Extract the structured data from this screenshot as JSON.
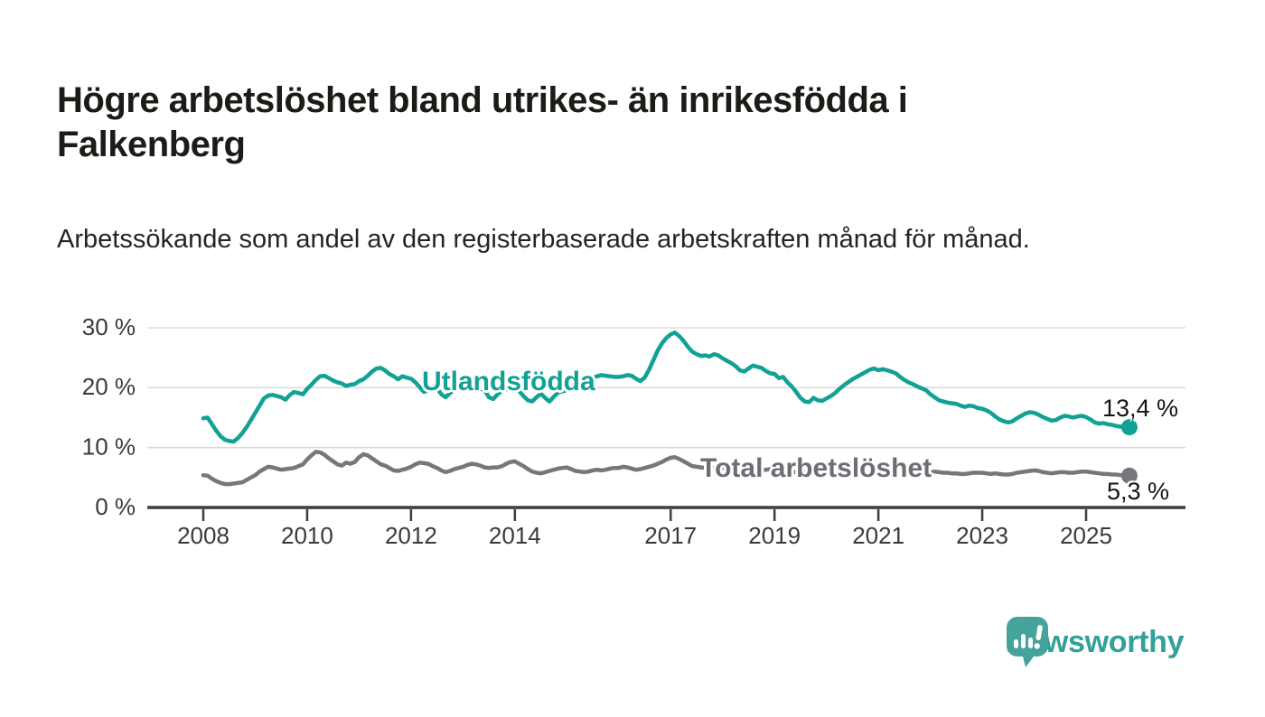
{
  "header": {
    "title": "Högre arbetslöshet bland utrikes- än inrikesfödda i Falkenberg",
    "subtitle": "Arbetssökande som andel av den registerbaserade arbetskraften månad för månad."
  },
  "branding": {
    "logo_text": "Newsworthy",
    "logo_icon": "speech-bubble-bar-chart-icon",
    "icon_color": "#46A39C",
    "text_color": "#33A099"
  },
  "colors": {
    "title": "#1b1b17",
    "axis_text": "#3a3a3a",
    "gridline": "#dbdbdb",
    "axis_line": "#3d3d3d"
  },
  "chart_data": {
    "type": "line",
    "title": "Högre arbetslöshet bland utrikes- än inrikesfödda i Falkenberg",
    "subtitle": "Arbetssökande som andel av den registerbaserade arbetskraften månad för månad.",
    "grid": true,
    "legend_position": "inline-labels",
    "ylim": [
      0,
      30
    ],
    "y_axis": {
      "ticks": [
        0,
        10,
        20,
        30
      ],
      "tick_labels": [
        "0 %",
        "10 %",
        "20 %",
        "30 %"
      ]
    },
    "x_axis": {
      "ticks": [
        2008,
        2010,
        2012,
        2014,
        2017,
        2019,
        2021,
        2023,
        2025
      ],
      "tick_labels": [
        "2008",
        "2010",
        "2012",
        "2014",
        "2017",
        "2019",
        "2021",
        "2023",
        "2025"
      ]
    },
    "series": [
      {
        "name": "Total arbetslöshet",
        "label": "Total arbetslöshet",
        "color": "#77767C",
        "label_color": "#6E6D73",
        "end_label": "5,3 %",
        "end_value": 5.3,
        "start_year": 2008,
        "points_per_year": 12,
        "values": [
          5.4,
          5.3,
          4.8,
          4.4,
          4.1,
          3.9,
          3.9,
          4.0,
          4.1,
          4.2,
          4.6,
          5.0,
          5.4,
          6.0,
          6.4,
          6.8,
          6.7,
          6.5,
          6.3,
          6.4,
          6.5,
          6.6,
          6.9,
          7.2,
          8.0,
          8.7,
          9.3,
          9.2,
          8.8,
          8.2,
          7.7,
          7.2,
          7.0,
          7.5,
          7.3,
          7.6,
          8.4,
          8.9,
          8.7,
          8.2,
          7.7,
          7.2,
          7.0,
          6.6,
          6.2,
          6.1,
          6.3,
          6.5,
          6.8,
          7.2,
          7.5,
          7.4,
          7.3,
          6.9,
          6.6,
          6.2,
          5.9,
          6.1,
          6.4,
          6.6,
          6.8,
          7.1,
          7.3,
          7.2,
          7.0,
          6.7,
          6.6,
          6.7,
          6.7,
          6.9,
          7.3,
          7.6,
          7.7,
          7.3,
          6.9,
          6.4,
          6.0,
          5.8,
          5.7,
          5.9,
          6.1,
          6.3,
          6.5,
          6.6,
          6.7,
          6.4,
          6.1,
          6.0,
          5.9,
          6.0,
          6.2,
          6.3,
          6.2,
          6.3,
          6.5,
          6.6,
          6.6,
          6.8,
          6.7,
          6.5,
          6.3,
          6.4,
          6.6,
          6.8,
          7.0,
          7.3,
          7.6,
          8.0,
          8.3,
          8.4,
          8.1,
          7.7,
          7.3,
          6.9,
          6.8,
          6.7,
          6.6,
          6.5,
          6.6,
          6.6,
          6.6,
          6.5,
          6.4,
          6.3,
          6.2,
          6.1,
          6.1,
          6.2,
          6.2,
          6.3,
          6.3,
          6.4,
          6.4,
          6.3,
          6.2,
          6.1,
          6.0,
          5.9,
          5.9,
          6.0,
          6.1,
          6.1,
          6.2,
          6.3,
          6.5,
          6.8,
          7.1,
          7.3,
          7.4,
          7.4,
          7.3,
          7.2,
          7.1,
          7.1,
          7.0,
          7.0,
          7.0,
          6.9,
          6.8,
          6.6,
          6.5,
          6.4,
          6.3,
          6.2,
          6.1,
          6.1,
          6.0,
          6.0,
          5.9,
          6.0,
          5.9,
          5.8,
          5.8,
          5.7,
          5.7,
          5.6,
          5.6,
          5.7,
          5.8,
          5.8,
          5.8,
          5.7,
          5.6,
          5.7,
          5.6,
          5.5,
          5.5,
          5.6,
          5.8,
          5.9,
          6.0,
          6.1,
          6.2,
          6.1,
          5.9,
          5.8,
          5.7,
          5.8,
          5.9,
          5.9,
          5.8,
          5.8,
          5.9,
          6.0,
          6.0,
          5.9,
          5.8,
          5.7,
          5.6,
          5.6,
          5.5,
          5.5,
          5.4,
          5.3,
          5.3
        ]
      },
      {
        "name": "Utlandsfödda",
        "label": "Utlandsfödda",
        "color": "#12A195",
        "label_color": "#12A195",
        "end_label": "13,4 %",
        "end_value": 13.4,
        "start_year": 2008,
        "points_per_year": 12,
        "values": [
          14.9,
          15.0,
          13.9,
          12.8,
          11.9,
          11.3,
          11.1,
          11.0,
          11.6,
          12.4,
          13.4,
          14.6,
          15.8,
          17.0,
          18.2,
          18.7,
          18.8,
          18.6,
          18.4,
          18.0,
          18.8,
          19.3,
          19.1,
          18.9,
          19.8,
          20.5,
          21.3,
          21.9,
          22.0,
          21.6,
          21.2,
          20.9,
          20.7,
          20.3,
          20.5,
          20.6,
          21.1,
          21.4,
          22.0,
          22.7,
          23.2,
          23.3,
          22.9,
          22.3,
          21.9,
          21.4,
          21.9,
          21.7,
          21.5,
          20.9,
          20.1,
          19.3,
          19.6,
          19.8,
          19.9,
          18.9,
          18.4,
          19.1,
          19.6,
          20.1,
          20.3,
          20.6,
          20.1,
          19.7,
          19.9,
          19.6,
          18.4,
          18.1,
          18.9,
          19.5,
          19.7,
          19.9,
          19.8,
          19.4,
          18.6,
          17.9,
          17.7,
          18.4,
          19.0,
          18.3,
          17.7,
          18.5,
          19.2,
          19.4,
          19.6,
          20.0,
          20.4,
          20.7,
          21.0,
          21.3,
          21.6,
          21.9,
          22.1,
          22.0,
          21.9,
          21.8,
          21.8,
          21.9,
          22.1,
          22.0,
          21.5,
          21.1,
          21.7,
          23.0,
          24.6,
          26.2,
          27.4,
          28.3,
          28.9,
          29.2,
          28.6,
          27.8,
          26.8,
          26.0,
          25.6,
          25.3,
          25.4,
          25.2,
          25.6,
          25.4,
          24.9,
          24.5,
          24.1,
          23.6,
          22.9,
          22.7,
          23.2,
          23.7,
          23.5,
          23.3,
          22.8,
          22.4,
          22.3,
          21.6,
          21.8,
          20.9,
          20.2,
          19.3,
          18.3,
          17.7,
          17.6,
          18.3,
          17.9,
          17.8,
          18.2,
          18.6,
          19.1,
          19.8,
          20.4,
          20.9,
          21.4,
          21.8,
          22.2,
          22.6,
          23.0,
          23.2,
          22.9,
          23.1,
          22.9,
          22.7,
          22.4,
          21.8,
          21.3,
          20.9,
          20.6,
          20.2,
          19.9,
          19.6,
          18.9,
          18.4,
          17.9,
          17.7,
          17.5,
          17.4,
          17.3,
          17.0,
          16.8,
          17.0,
          16.9,
          16.6,
          16.5,
          16.2,
          15.8,
          15.2,
          14.7,
          14.4,
          14.2,
          14.4,
          14.9,
          15.3,
          15.7,
          15.9,
          15.8,
          15.5,
          15.1,
          14.8,
          14.5,
          14.6,
          15.0,
          15.3,
          15.2,
          15.0,
          15.2,
          15.3,
          15.1,
          14.7,
          14.2,
          14.0,
          14.1,
          13.9,
          13.8,
          13.6,
          13.5,
          13.4,
          13.4
        ]
      }
    ]
  }
}
